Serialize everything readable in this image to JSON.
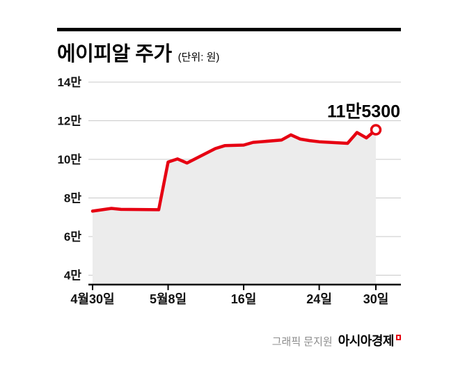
{
  "header": {
    "title": "에이피알 주가",
    "unit_label": "(단위: 원)"
  },
  "footer": {
    "credit": "그래픽 문지원",
    "brand": "아시아경제"
  },
  "chart_data": {
    "type": "line",
    "title": "에이피알 주가",
    "unit": "원",
    "line_color": "#e60012",
    "area_color": "#ececec",
    "grid": true,
    "ylim": [
      40000,
      140000
    ],
    "y_ticks": [
      {
        "label": "14만",
        "value": 140000
      },
      {
        "label": "12만",
        "value": 120000
      },
      {
        "label": "10만",
        "value": 100000
      },
      {
        "label": "8만",
        "value": 80000
      },
      {
        "label": "6만",
        "value": 60000
      },
      {
        "label": "4만",
        "value": 40000
      }
    ],
    "x_ticks": [
      {
        "label": "4월30일",
        "day": 0
      },
      {
        "label": "5월8일",
        "day": 8
      },
      {
        "label": "16일",
        "day": 16
      },
      {
        "label": "24일",
        "day": 24
      },
      {
        "label": "30일",
        "day": 30
      }
    ],
    "points": [
      {
        "date": "4월30일",
        "day": 0,
        "price": 73200
      },
      {
        "date": "5월2일",
        "day": 2,
        "price": 74600
      },
      {
        "date": "5월3일",
        "day": 3,
        "price": 74100
      },
      {
        "date": "5월7일",
        "day": 7,
        "price": 73900
      },
      {
        "date": "5월8일",
        "day": 8,
        "price": 98600
      },
      {
        "date": "5월9일",
        "day": 9,
        "price": 100200
      },
      {
        "date": "5월10일",
        "day": 10,
        "price": 98100
      },
      {
        "date": "5월13일",
        "day": 13,
        "price": 105600
      },
      {
        "date": "5월14일",
        "day": 14,
        "price": 107100
      },
      {
        "date": "5월16일",
        "day": 16,
        "price": 107400
      },
      {
        "date": "5월17일",
        "day": 17,
        "price": 108800
      },
      {
        "date": "5월20일",
        "day": 20,
        "price": 110000
      },
      {
        "date": "5월21일",
        "day": 21,
        "price": 112700
      },
      {
        "date": "5월22일",
        "day": 22,
        "price": 110500
      },
      {
        "date": "5월23일",
        "day": 23,
        "price": 109700
      },
      {
        "date": "5월24일",
        "day": 24,
        "price": 109100
      },
      {
        "date": "5월27일",
        "day": 27,
        "price": 108300
      },
      {
        "date": "5월28일",
        "day": 28,
        "price": 113900
      },
      {
        "date": "5월29일",
        "day": 29,
        "price": 111100
      },
      {
        "date": "5월30일",
        "day": 30,
        "price": 115300
      }
    ],
    "annotation": {
      "label": "11만5300",
      "value": 115300,
      "date": "5월30일"
    }
  }
}
